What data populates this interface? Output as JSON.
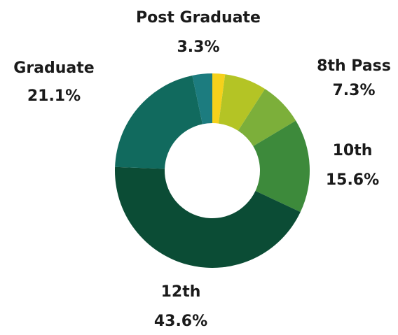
{
  "chart_data": {
    "type": "donut",
    "categories": [
      null,
      null,
      "8th Pass",
      "10th",
      "12th",
      "Graduate",
      "Post Graduate"
    ],
    "values": [
      2.1,
      7.0,
      7.3,
      15.6,
      43.6,
      21.1,
      3.3
    ],
    "value_labels": [
      null,
      null,
      "7.3%",
      "15.6%",
      "43.6%",
      "21.1%",
      "3.3%"
    ],
    "colors": [
      "#f5d11b",
      "#b4c425",
      "#7caf3a",
      "#3d8a3b",
      "#0b4c35",
      "#116a5e",
      "#1c7c7f"
    ]
  }
}
